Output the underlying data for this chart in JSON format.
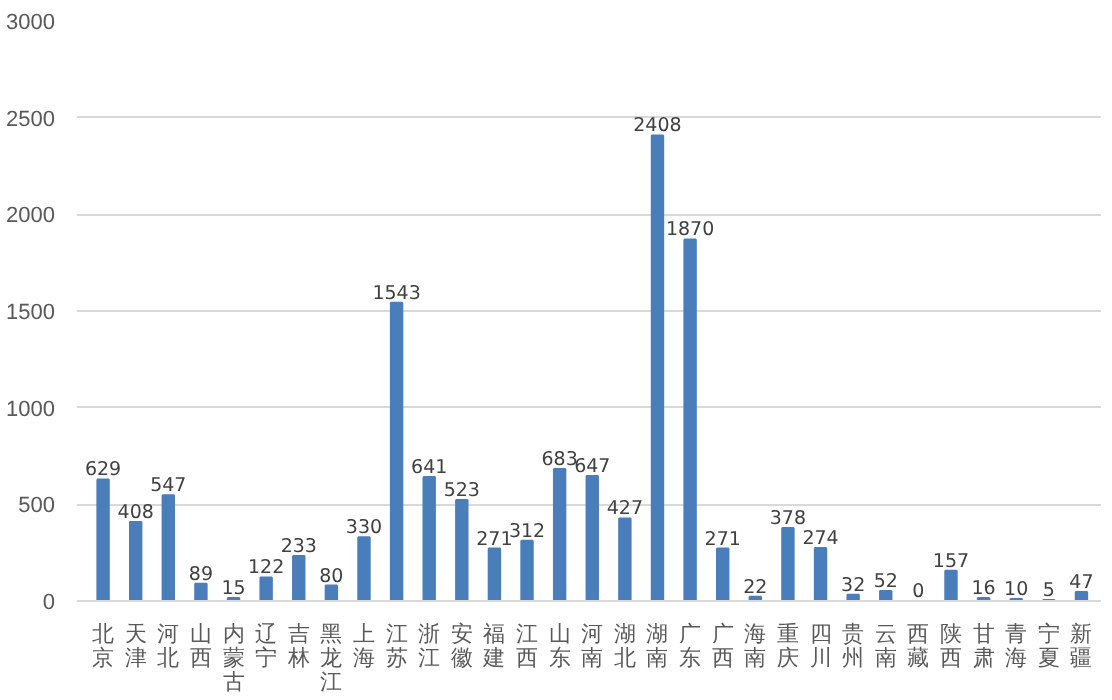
{
  "chart_data": {
    "type": "bar",
    "categories": [
      "北京",
      "天津",
      "河北",
      "山西",
      "内蒙古",
      "辽宁",
      "吉林",
      "黑龙江",
      "上海",
      "江苏",
      "浙江",
      "安徽",
      "福建",
      "江西",
      "山东",
      "河南",
      "湖北",
      "湖南",
      "广东",
      "广西",
      "海南",
      "重庆",
      "四川",
      "贵州",
      "云南",
      "西藏",
      "陕西",
      "甘肃",
      "青海",
      "宁夏",
      "新疆"
    ],
    "values": [
      629,
      408,
      547,
      89,
      15,
      122,
      233,
      80,
      330,
      1543,
      641,
      523,
      271,
      312,
      683,
      647,
      427,
      2408,
      1870,
      271,
      22,
      378,
      274,
      32,
      52,
      0,
      157,
      16,
      10,
      5,
      47
    ],
    "color": "#4a7ebb",
    "ylim": [
      0,
      3000
    ],
    "yticks": [
      0,
      500,
      1000,
      1500,
      2000,
      2500,
      3000
    ],
    "grid": "y",
    "data_labels": true
  }
}
